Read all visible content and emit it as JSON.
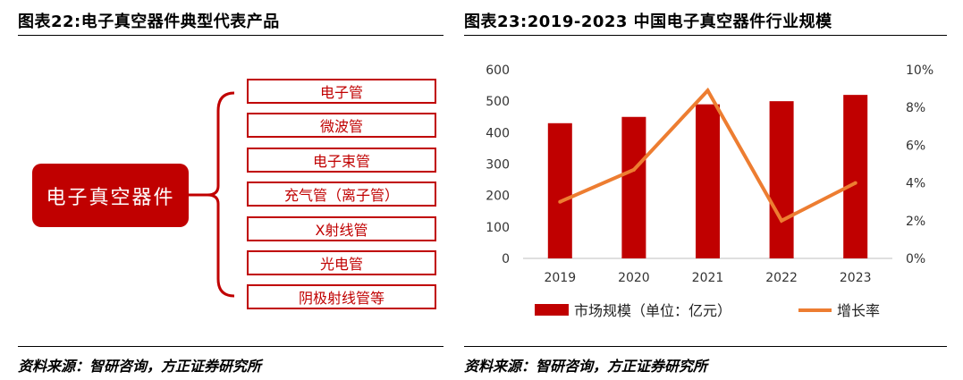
{
  "left_panel": {
    "title": "图表22:电子真空器件典型代表产品",
    "main_label": "电子真空器件",
    "products": [
      "电子管",
      "微波管",
      "电子束管",
      "充气管（离子管）",
      "X射线管",
      "光电管",
      "阴极射线管等"
    ],
    "source": "资料来源：智研咨询，方正证券研究所",
    "accent": "#c00000"
  },
  "right_panel": {
    "title": "图表23:2019-2023 中国电子真空器件行业规模",
    "source": "资料来源：智研咨询，方正证券研究所"
  },
  "chart_data": {
    "type": "bar",
    "categories": [
      "2019",
      "2020",
      "2021",
      "2022",
      "2023"
    ],
    "series": [
      {
        "name": "市场规模（单位：亿元）",
        "type": "bar",
        "axis": "left",
        "color": "#c00000",
        "values": [
          430,
          450,
          490,
          500,
          520
        ]
      },
      {
        "name": "增长率",
        "type": "line",
        "axis": "right",
        "color": "#ed7d31",
        "values": [
          3.0,
          4.7,
          8.9,
          2.0,
          4.0
        ]
      }
    ],
    "y_left": {
      "min": 0,
      "max": 600,
      "ticks": [
        "0",
        "100",
        "200",
        "300",
        "400",
        "500",
        "600"
      ]
    },
    "y_right": {
      "min": 0,
      "max": 10,
      "ticks": [
        "0%",
        "2%",
        "4%",
        "6%",
        "8%",
        "10%"
      ]
    },
    "grid": false,
    "legend_position": "bottom"
  }
}
